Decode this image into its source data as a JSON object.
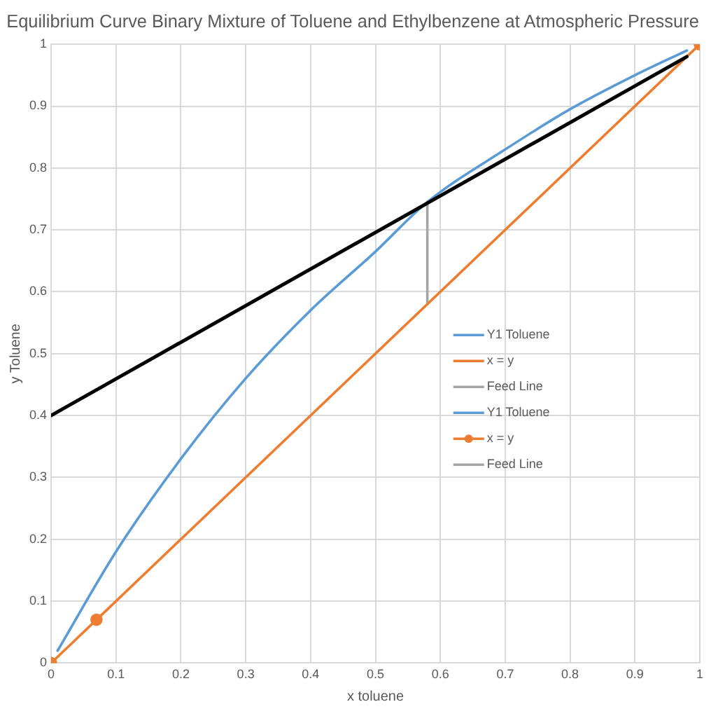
{
  "chart_data": {
    "type": "line",
    "title": "Equilibrium Curve Binary Mixture of Toluene and Ethylbenzene at Atmospheric Pressure",
    "xlabel": "x toluene",
    "ylabel": "y Toluene",
    "xlim": [
      0,
      1
    ],
    "ylim": [
      0,
      1
    ],
    "xticks": [
      0,
      0.1,
      0.2,
      0.3,
      0.4,
      0.5,
      0.6,
      0.7,
      0.8,
      0.9,
      1
    ],
    "yticks": [
      0,
      0.1,
      0.2,
      0.3,
      0.4,
      0.5,
      0.6,
      0.7,
      0.8,
      0.9,
      1
    ],
    "grid": true,
    "legend": "right",
    "line_style": "solid",
    "series": [
      {
        "name": "Y1 Toluene",
        "color": "#5b9bd5"
      },
      {
        "name": "x = y",
        "color": "#ed7d31"
      },
      {
        "name": "Feed Line",
        "color": "#a5a5a5"
      },
      {
        "name": "Y1 Toluene",
        "color": "#5b9bd5",
        "x": [
          0.01,
          0.1,
          0.2,
          0.3,
          0.4,
          0.5,
          0.58,
          0.7,
          0.8,
          0.9,
          0.98
        ],
        "values": [
          0.02,
          0.18,
          0.33,
          0.46,
          0.57,
          0.665,
          0.745,
          0.83,
          0.895,
          0.95,
          0.99
        ]
      },
      {
        "name": "x = y",
        "color": "#ed7d31",
        "marker": "circle",
        "x": [
          0,
          0.07,
          1
        ],
        "values": [
          0,
          0.07,
          1
        ]
      },
      {
        "name": "Feed Line",
        "color": "#a5a5a5",
        "x": [
          0.58,
          0.58
        ],
        "values": [
          0.58,
          0.745
        ]
      },
      {
        "color": "#000000",
        "x": [
          0,
          0.98
        ],
        "values": [
          0.4,
          0.98
        ]
      }
    ]
  }
}
